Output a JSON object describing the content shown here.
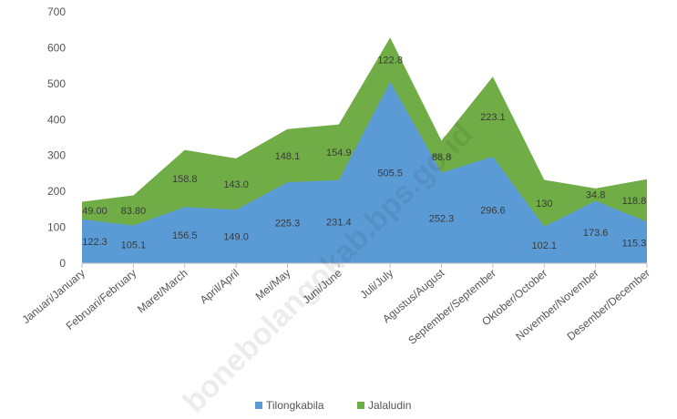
{
  "chart_data": {
    "type": "area",
    "stacked": true,
    "categories": [
      "Januari/January",
      "Februari/February",
      "Maret/March",
      "April/April",
      "Mei/May",
      "Juni/June",
      "Juli/July",
      "Agustus/August",
      "September/September",
      "Oktober/October",
      "November/November",
      "Desember/December"
    ],
    "series": [
      {
        "name": "Tilongkabila",
        "color": "#5b9bd5",
        "values": [
          122.3,
          105.1,
          156.5,
          149.0,
          225.3,
          231.4,
          505.5,
          252.3,
          296.6,
          102.1,
          173.6,
          115.3
        ],
        "labels": [
          "122.3",
          "105.1",
          "156.5",
          "149.0",
          "225.3",
          "231.4",
          "505.5",
          "252.3",
          "296.6",
          "102.1",
          "173.6",
          "115.3"
        ]
      },
      {
        "name": "Jalaludin",
        "color": "#70ad47",
        "values": [
          49.0,
          83.8,
          158.8,
          143.0,
          148.1,
          154.9,
          122.8,
          88.8,
          223.1,
          130.0,
          34.8,
          118.8
        ],
        "labels": [
          "49.00",
          "83.80",
          "158.8",
          "143.0",
          "148.1",
          "154.9",
          "122.8",
          "88.8",
          "223.1",
          "130",
          "34.8",
          "118.8"
        ]
      }
    ],
    "yticks": [
      "0",
      "100",
      "200",
      "300",
      "400",
      "500",
      "600",
      "700"
    ],
    "ylim": [
      0,
      700
    ],
    "grid": false,
    "legend_position": "bottom",
    "watermark": "bonebolangokab.bps.go.id"
  }
}
